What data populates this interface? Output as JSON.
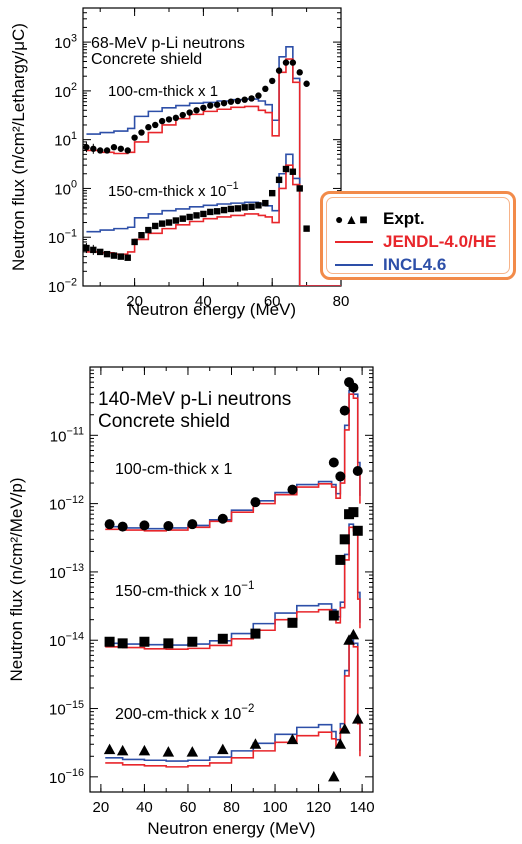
{
  "legend": {
    "expt_label": "Expt.",
    "expt_symbols": "●▲■",
    "jendl_label": "JENDL-4.0/HE",
    "incl_label": "INCL4.6",
    "jendl_color": "#e8262b",
    "incl_color": "#2d4fa8"
  },
  "chart_data": [
    {
      "type": "line",
      "title": "68-MeV p-Li neutrons",
      "subtitle": "Concrete shield",
      "xlabel": "Neutron energy (MeV)",
      "ylabel": "Neutron flux (n/cm²/Lethargy/μC)",
      "xlim": [
        5,
        80
      ],
      "ylim": [
        0.01,
        5000
      ],
      "yscale": "log",
      "xticks": [
        "20",
        "40",
        "60",
        "80"
      ],
      "yticks": [
        "10^-2",
        "10^-1",
        "10^0",
        "10^1",
        "10^2",
        "10^3"
      ],
      "annotations": [
        "100-cm-thick x 1",
        "150-cm-thick x 10^-1"
      ],
      "groups": [
        {
          "label": "100-cm-thick x 1",
          "expt": {
            "marker": "circle",
            "x": [
              6,
              8,
              10,
              12,
              14,
              16,
              18,
              20,
              22,
              24,
              26,
              28,
              30,
              32,
              34,
              36,
              38,
              40,
              42,
              44,
              46,
              48,
              50,
              52,
              54,
              56,
              58,
              60,
              62,
              64,
              66,
              68,
              70
            ],
            "y": [
              7,
              6.5,
              6,
              6,
              7,
              6.5,
              6,
              11,
              14,
              18,
              20,
              24,
              26,
              28,
              32,
              36,
              40,
              45,
              50,
              52,
              56,
              60,
              62,
              66,
              70,
              80,
              110,
              160,
              260,
              380,
              380,
              240,
              140
            ]
          },
          "jendl": {
            "x": [
              6,
              10,
              14,
              18,
              20,
              24,
              28,
              32,
              36,
              40,
              44,
              48,
              52,
              56,
              58,
              60,
              62,
              64,
              66,
              68,
              68,
              80
            ],
            "y": [
              6,
              5.5,
              5.2,
              5.5,
              9,
              14,
              20,
              27,
              33,
              38,
              42,
              46,
              48,
              40,
              36,
              12,
              240,
              450,
              150,
              5,
              0.001,
              0.001
            ]
          },
          "incl": {
            "x": [
              6,
              10,
              14,
              18,
              20,
              24,
              28,
              32,
              36,
              40,
              44,
              48,
              52,
              56,
              58,
              60,
              62,
              64,
              66,
              68,
              68,
              80
            ],
            "y": [
              13,
              14,
              15,
              17,
              30,
              38,
              45,
              50,
              56,
              58,
              62,
              66,
              68,
              62,
              52,
              25,
              500,
              800,
              180,
              6,
              0.001,
              0.001
            ]
          }
        },
        {
          "label": "150-cm-thick x 10^-1",
          "expt": {
            "marker": "square",
            "x": [
              6,
              8,
              10,
              12,
              14,
              16,
              18,
              20,
              22,
              24,
              26,
              28,
              30,
              32,
              34,
              36,
              38,
              40,
              42,
              44,
              46,
              48,
              50,
              52,
              54,
              56,
              58,
              60,
              62,
              64,
              66,
              68,
              70
            ],
            "y": [
              0.06,
              0.055,
              0.05,
              0.045,
              0.042,
              0.04,
              0.038,
              0.08,
              0.11,
              0.14,
              0.17,
              0.19,
              0.2,
              0.22,
              0.24,
              0.26,
              0.28,
              0.3,
              0.33,
              0.34,
              0.36,
              0.38,
              0.39,
              0.41,
              0.42,
              0.45,
              0.5,
              0.8,
              1.5,
              2.5,
              2.2,
              1,
              0.15
            ]
          },
          "jendl": {
            "x": [
              6,
              10,
              14,
              18,
              20,
              24,
              28,
              32,
              36,
              40,
              44,
              48,
              52,
              56,
              58,
              60,
              62,
              64,
              66,
              68,
              68,
              80
            ],
            "y": [
              0.05,
              0.048,
              0.045,
              0.05,
              0.09,
              0.12,
              0.15,
              0.18,
              0.21,
              0.24,
              0.26,
              0.28,
              0.3,
              0.28,
              0.26,
              0.2,
              1,
              3,
              1.2,
              0.02,
              0.001,
              0.001
            ]
          },
          "incl": {
            "x": [
              6,
              10,
              14,
              18,
              20,
              24,
              28,
              32,
              36,
              40,
              44,
              48,
              52,
              56,
              58,
              60,
              62,
              64,
              66,
              68,
              68,
              80
            ],
            "y": [
              0.13,
              0.14,
              0.15,
              0.16,
              0.25,
              0.3,
              0.35,
              0.38,
              0.42,
              0.45,
              0.48,
              0.5,
              0.52,
              0.48,
              0.44,
              0.35,
              2,
              5,
              1.6,
              0.03,
              0.001,
              0.001
            ]
          }
        }
      ]
    },
    {
      "type": "line",
      "title": "140-MeV p-Li neutrons",
      "subtitle": "Concrete shield",
      "xlabel": "Neutron energy (MeV)",
      "ylabel": "Neutron flux (n/cm²/MeV/p)",
      "xlim": [
        15,
        145
      ],
      "ylim": [
        6e-17,
        1e-10
      ],
      "yscale": "log",
      "xticks": [
        "20",
        "40",
        "60",
        "80",
        "100",
        "120",
        "140"
      ],
      "yticks": [
        "10^-16",
        "10^-15",
        "10^-14",
        "10^-13",
        "10^-12",
        "10^-11"
      ],
      "annotations": [
        "100-cm-thick x 1",
        "150-cm-thick x 10^-1",
        "200-cm-thick x 10^-2"
      ],
      "groups": [
        {
          "label": "100-cm-thick x 1",
          "expt": {
            "marker": "circle",
            "x": [
              24,
              30,
              40,
              51,
              62,
              76,
              91,
              108,
              127,
              130,
              132,
              134,
              136,
              138
            ],
            "y": [
              5e-13,
              4.6e-13,
              4.8e-13,
              4.7e-13,
              5e-13,
              6e-13,
              1.05e-12,
              1.6e-12,
              4e-12,
              2.5e-12,
              2.3e-11,
              6e-11,
              5e-11,
              3e-12
            ]
          },
          "jendl": {
            "x": [
              22,
              30,
              40,
              50,
              60,
              70,
              80,
              90,
              100,
              110,
              120,
              126,
              128,
              130,
              132,
              134,
              136,
              138,
              139
            ],
            "y": [
              4.2e-13,
              4.1e-13,
              4e-13,
              4.1e-13,
              4.5e-13,
              5.5e-13,
              7.5e-13,
              1e-12,
              1.35e-12,
              1.75e-12,
              1.95e-12,
              1.75e-12,
              1.2e-12,
              2e-12,
              1.2e-11,
              4e-11,
              3.5e-11,
              3e-12,
              1e-12
            ]
          },
          "incl": {
            "x": [
              22,
              30,
              40,
              50,
              60,
              70,
              80,
              90,
              100,
              110,
              120,
              126,
              128,
              130,
              132,
              134,
              136,
              138,
              139
            ],
            "y": [
              4.6e-13,
              4.4e-13,
              4.3e-13,
              4.4e-13,
              4.8e-13,
              5.8e-13,
              8e-13,
              1.1e-12,
              1.45e-12,
              1.9e-12,
              2.1e-12,
              1.9e-12,
              1.4e-12,
              2.5e-12,
              1.4e-11,
              4.5e-11,
              4e-11,
              4e-12,
              1.3e-12
            ]
          }
        },
        {
          "label": "150-cm-thick x 10^-1",
          "expt": {
            "marker": "square",
            "x": [
              24,
              30,
              40,
              51,
              62,
              76,
              91,
              108,
              127,
              130,
              132,
              134,
              136,
              138
            ],
            "y": [
              9.5e-15,
              9e-15,
              9.5e-15,
              9e-15,
              9.5e-15,
              1.05e-14,
              1.25e-14,
              1.8e-14,
              2.3e-14,
              1.5e-13,
              3e-13,
              7e-13,
              7.5e-13,
              4e-13
            ]
          },
          "jendl": {
            "x": [
              22,
              30,
              40,
              50,
              60,
              70,
              80,
              90,
              100,
              110,
              120,
              126,
              128,
              130,
              132,
              134,
              136,
              138,
              139
            ],
            "y": [
              8e-15,
              7.8e-15,
              7.5e-15,
              7.4e-15,
              7.6e-15,
              8.4e-15,
              1.05e-14,
              1.4e-14,
              2e-14,
              2.6e-14,
              2.8e-14,
              2.3e-14,
              1.8e-14,
              3e-14,
              1.5e-13,
              4.5e-13,
              4e-13,
              4e-14,
              1.5e-14
            ]
          },
          "incl": {
            "x": [
              22,
              30,
              40,
              50,
              60,
              70,
              80,
              90,
              100,
              110,
              120,
              126,
              128,
              130,
              132,
              134,
              136,
              138,
              139
            ],
            "y": [
              9e-15,
              8.8e-15,
              8.6e-15,
              8.5e-15,
              8.8e-15,
              9.8e-15,
              1.25e-14,
              1.75e-14,
              2.5e-14,
              3.2e-14,
              3.4e-14,
              2.8e-14,
              2.2e-14,
              3.6e-14,
              1.8e-13,
              5e-13,
              4.5e-13,
              5e-14,
              1.8e-14
            ]
          }
        },
        {
          "label": "200-cm-thick x 10^-2",
          "expt": {
            "marker": "triangle",
            "x": [
              24,
              30,
              40,
              51,
              62,
              76,
              91,
              108,
              127,
              130,
              132,
              134,
              136,
              138
            ],
            "y": [
              2.5e-16,
              2.4e-16,
              2.4e-16,
              2.3e-16,
              2.3e-16,
              2.5e-16,
              3e-16,
              3.5e-16,
              1e-16,
              3e-16,
              5e-16,
              1e-14,
              1.2e-14,
              7e-16
            ]
          },
          "jendl": {
            "x": [
              22,
              30,
              40,
              50,
              60,
              70,
              80,
              90,
              100,
              110,
              120,
              126,
              128,
              130,
              132,
              134,
              136,
              138,
              139
            ],
            "y": [
              1.6e-16,
              1.5e-16,
              1.45e-16,
              1.4e-16,
              1.45e-16,
              1.6e-16,
              1.9e-16,
              2.4e-16,
              3.2e-16,
              4e-16,
              4.5e-16,
              3.6e-16,
              2.8e-16,
              5e-16,
              3e-15,
              9e-15,
              8e-15,
              6e-16,
              2e-16
            ]
          },
          "incl": {
            "x": [
              22,
              30,
              40,
              50,
              60,
              70,
              80,
              90,
              100,
              110,
              120,
              126,
              128,
              130,
              132,
              134,
              136,
              138,
              139
            ],
            "y": [
              1.9e-16,
              1.8e-16,
              1.75e-16,
              1.7e-16,
              1.75e-16,
              1.95e-16,
              2.4e-16,
              3.1e-16,
              4.2e-16,
              5.3e-16,
              5.8e-16,
              4.6e-16,
              3.5e-16,
              6e-16,
              3.6e-15,
              1e-14,
              9e-15,
              7e-16,
              2.4e-16
            ]
          }
        }
      ]
    }
  ]
}
